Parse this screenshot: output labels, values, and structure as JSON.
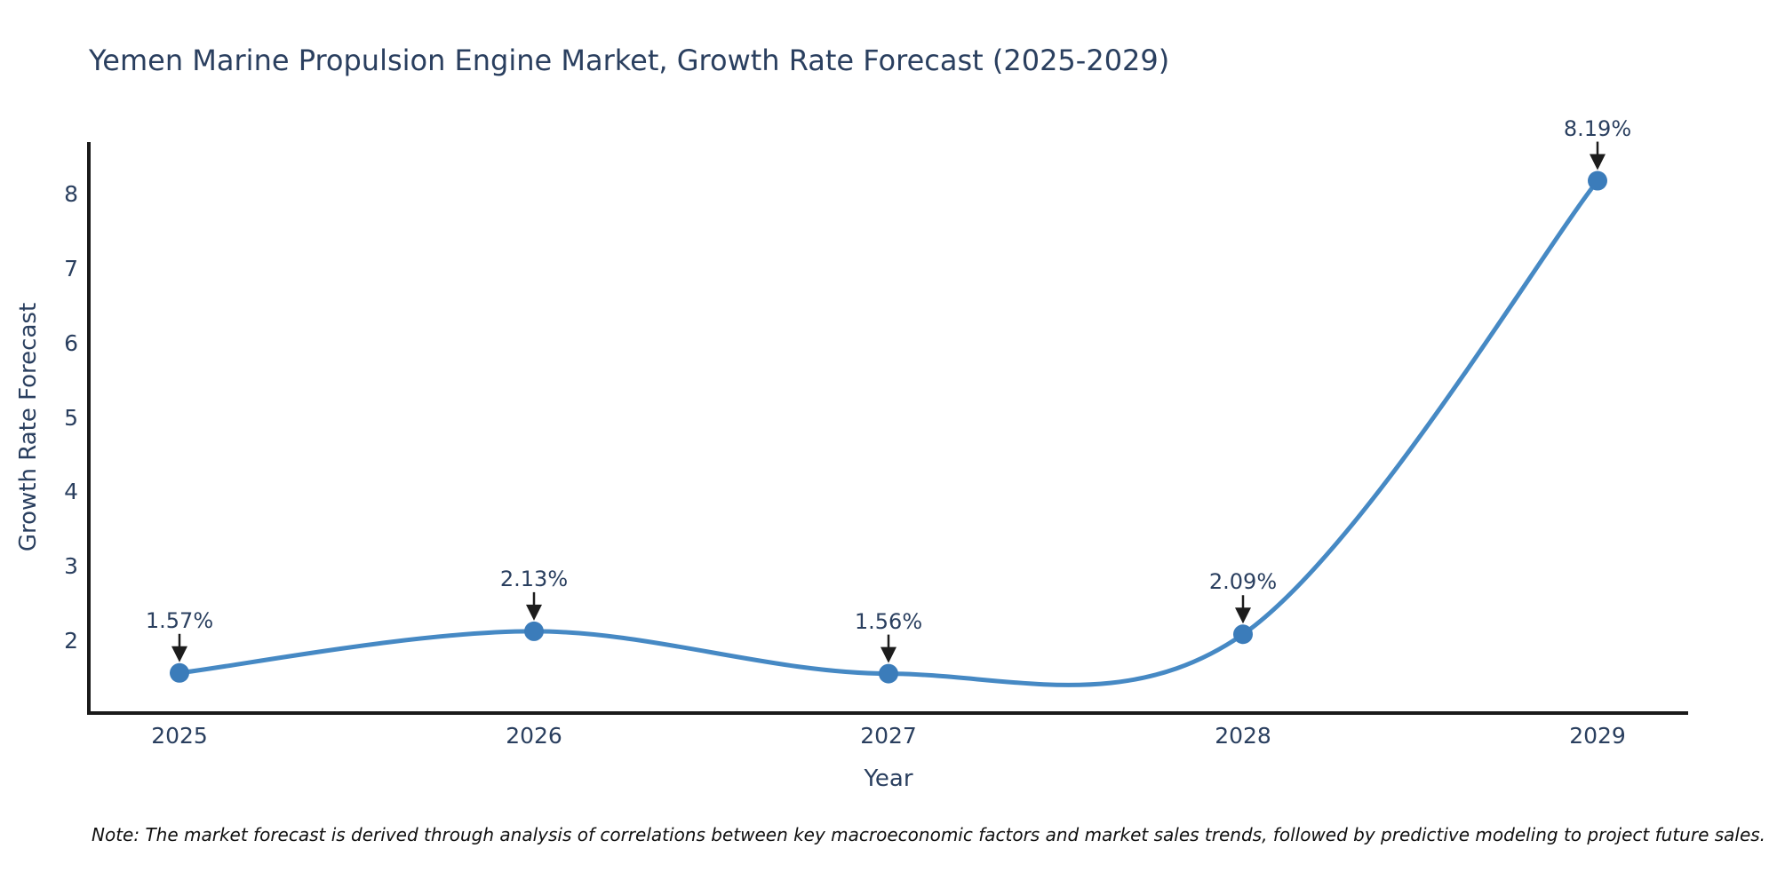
{
  "chart": {
    "title": "Yemen Marine Propulsion Engine Market, Growth Rate Forecast (2025-2029)",
    "x_axis": {
      "label": "Year",
      "ticks": [
        "2025",
        "2026",
        "2027",
        "2028",
        "2029"
      ]
    },
    "y_axis": {
      "label": "Growth Rate Forecast",
      "ticks": [
        "8",
        "7",
        "6",
        "5",
        "4",
        "3",
        "2"
      ]
    },
    "note": "Note: The market forecast is derived through analysis of correlations between key macroeconomic factors and market sales trends, followed by predictive modeling to project future sales."
  },
  "chart_data": {
    "type": "line",
    "title": "Yemen Marine Propulsion Engine Market, Growth Rate Forecast (2025-2029)",
    "xlabel": "Year",
    "ylabel": "Growth Rate Forecast",
    "x": [
      2025,
      2026,
      2027,
      2028,
      2029
    ],
    "series": [
      {
        "name": "Growth Rate Forecast",
        "values": [
          1.57,
          2.13,
          1.56,
          2.09,
          8.19
        ]
      }
    ],
    "annotations": [
      "1.57%",
      "2.13%",
      "1.56%",
      "2.09%",
      "8.19%"
    ],
    "ylim": [
      1.03,
      8.71
    ],
    "grid": false,
    "legend": "none",
    "line_shape": "spline",
    "colors": {
      "line": "#4689c4",
      "marker": "#3b7cba",
      "axis": "#1a1a1a",
      "arrow": "#1c1c1c",
      "text": "#2a3f5f"
    }
  }
}
